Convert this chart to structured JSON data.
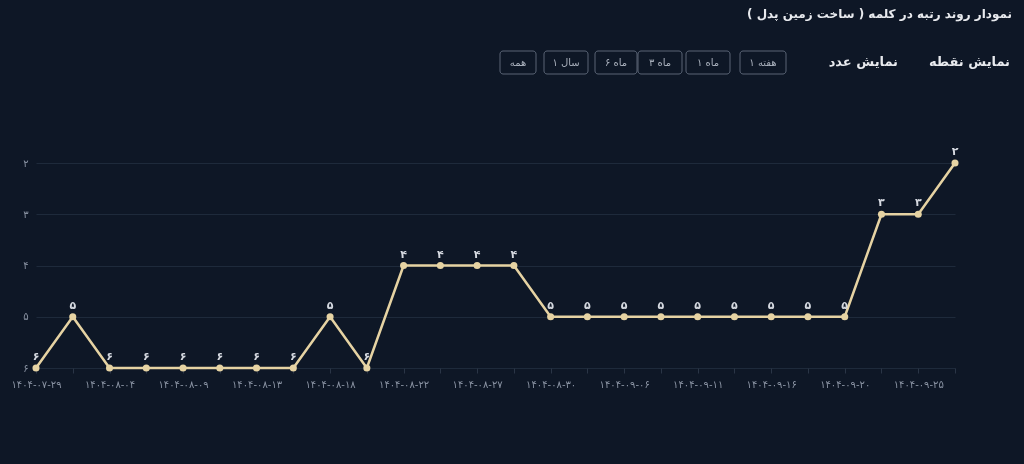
{
  "chart_data": {
    "type": "line",
    "title": "نمودار روند رتبه در کلمه ( ساخت زمین پدل )",
    "annotations": [
      "نمایش نقطه",
      "نمایش عدد",
      "۱ هفته",
      "۱ ماه",
      "۳ ماه",
      "۶ ماه",
      "۱ سال",
      "همه"
    ],
    "categories": [
      "۱۴۰۴-۰۷-۲۹",
      null,
      "۱۴۰۴-۰۸-۰۴",
      null,
      "۱۴۰۴-۰۸-۰۹",
      null,
      "۱۴۰۴-۰۸-۱۳",
      null,
      "۱۴۰۴-۰۸-۱۸",
      null,
      "۱۴۰۴-۰۸-۲۲",
      null,
      "۱۴۰۴-۰۸-۲۷",
      null,
      "۱۴۰۴-۰۸-۳۰",
      null,
      "۱۴۰۴-۰۹-۰۶",
      null,
      "۱۴۰۴-۰۹-۱۱",
      null,
      "۱۴۰۴-۰۹-۱۶",
      null,
      "۱۴۰۴-۰۹-۲۰",
      null,
      "۱۴۰۴-۰۹-۲۵",
      null
    ],
    "series": [
      {
        "color": "#e6d3a3",
        "values": [
          6,
          5,
          6,
          6,
          6,
          6,
          6,
          6,
          5,
          6,
          4,
          4,
          4,
          4,
          5,
          5,
          5,
          5,
          5,
          5,
          5,
          5,
          5,
          3,
          3,
          2
        ],
        "value_labels": [
          "۶",
          "۵",
          "۶",
          "۶",
          "۶",
          "۶",
          "۶",
          "۶",
          "۵",
          "۶",
          "۴",
          "۴",
          "۴",
          "۴",
          "۵",
          "۵",
          "۵",
          "۵",
          "۵",
          "۵",
          "۵",
          "۵",
          "۵",
          "۳",
          "۳",
          "۲"
        ]
      }
    ],
    "ylim": [
      6,
      2
    ],
    "yticks": [
      {
        "value": 2,
        "label": "۲"
      },
      {
        "value": 3,
        "label": "۳"
      },
      {
        "value": 4,
        "label": "۴"
      },
      {
        "value": 5,
        "label": "۵"
      },
      {
        "value": 6,
        "label": "۶"
      }
    ],
    "grid": "y",
    "marker": "circle",
    "line_style": "solid"
  }
}
